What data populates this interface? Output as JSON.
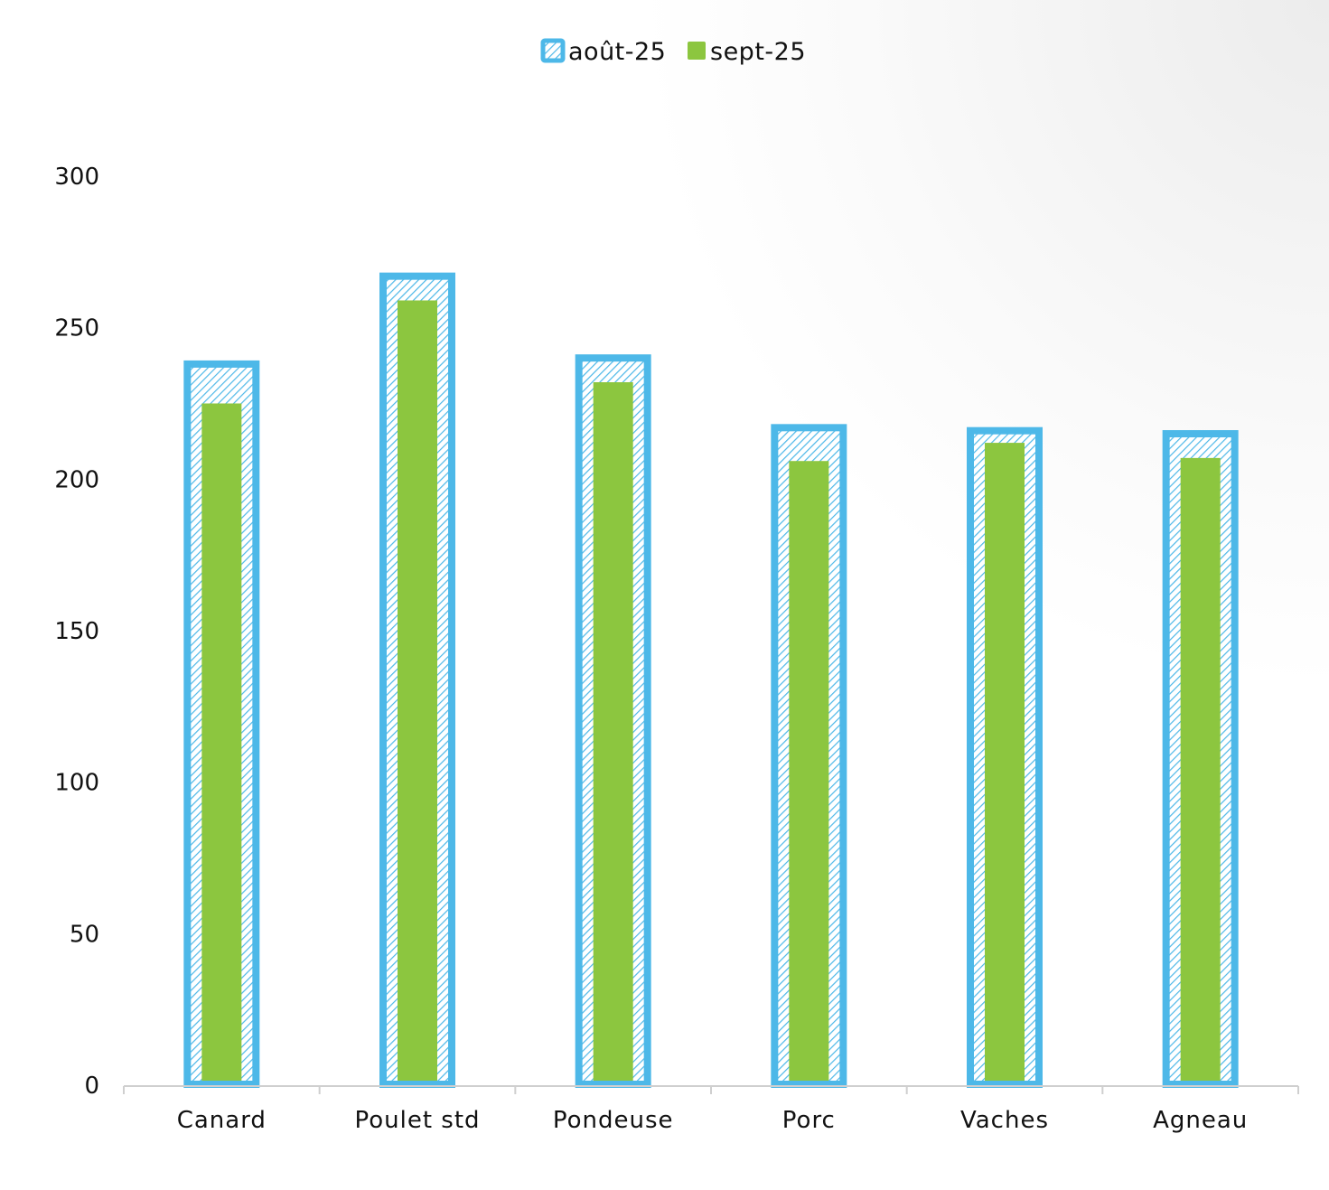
{
  "chart_data": {
    "type": "bar",
    "title": "",
    "xlabel": "",
    "ylabel": "",
    "categories": [
      "Canard",
      "Poulet std",
      "Pondeuse",
      "Porc",
      "Vaches",
      "Agneau"
    ],
    "series": [
      {
        "name": "août-25",
        "values": [
          238,
          267,
          240,
          217,
          216,
          215
        ],
        "color": "#4db8e8",
        "fill_pattern": "diagonal-hatch"
      },
      {
        "name": "sept-25",
        "values": [
          225,
          259,
          232,
          206,
          212,
          207
        ],
        "color": "#8cc63f"
      }
    ],
    "ylim": [
      0,
      300
    ],
    "yticks": [
      "0",
      "50",
      "100",
      "150",
      "200",
      "250",
      "300"
    ],
    "grid": false,
    "legend_position": "top-center"
  }
}
